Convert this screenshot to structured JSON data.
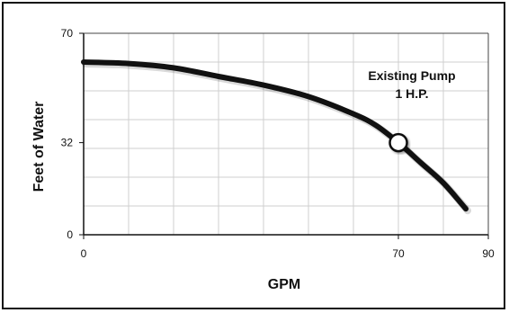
{
  "chart_data": {
    "type": "line",
    "title": "",
    "xlabel": "GPM",
    "ylabel": "Feet of Water",
    "xlim": [
      0,
      90
    ],
    "ylim": [
      0,
      70
    ],
    "grid": true,
    "x_tick_labels": [
      "0",
      "70",
      "90"
    ],
    "y_tick_labels": [
      "0",
      "32",
      "70"
    ],
    "series": [
      {
        "name": "",
        "x": [
          0,
          10,
          20,
          30,
          40,
          50,
          60,
          65,
          70,
          75,
          80,
          85
        ],
        "y": [
          60,
          59.5,
          58,
          55,
          52,
          48,
          42,
          38,
          32,
          25,
          18,
          9
        ],
        "color": "#111111"
      }
    ],
    "annotations": [
      {
        "text": [
          "Existing Pump",
          "1 H.P."
        ],
        "x": 73,
        "y": 51
      }
    ],
    "reference_point": {
      "x": 70,
      "y": 32,
      "line_color": "#777777"
    }
  }
}
